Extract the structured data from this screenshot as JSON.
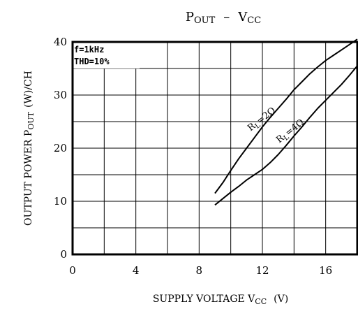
{
  "chart_data": {
    "type": "line",
    "title": "Pₒᵤₜ – Vᴄᴄ",
    "title_parts": {
      "main_left": "P",
      "sub_left": "OUT",
      "dash": "–",
      "main_right": "V",
      "sub_right": "CC"
    },
    "xlabel": "SUPPLY VOLTAGE V",
    "xlabel_sub": "CC",
    "xlabel_unit": "(V)",
    "ylabel": "OUTPUT POWER P",
    "ylabel_sub": "OUT",
    "ylabel_unit": "(W)/CH",
    "xlim": [
      0,
      18
    ],
    "ylim": [
      0,
      40
    ],
    "x_ticks": [
      0,
      4,
      8,
      12,
      16
    ],
    "y_ticks": [
      0,
      10,
      20,
      30,
      40
    ],
    "grid": true,
    "annotations": [
      "f=1kHz",
      "THD=10%"
    ],
    "series": [
      {
        "name": "RL=2Ω",
        "label_main": "R",
        "label_sub": "L",
        "label_value": "=2Ω",
        "x": [
          9.0,
          9.5,
          10.0,
          10.5,
          11.0,
          11.5,
          12.0,
          12.5,
          13.0,
          13.5,
          14.0,
          14.5,
          15.0,
          15.5,
          16.0,
          16.5,
          17.0,
          17.5,
          18.0
        ],
        "y": [
          11.5,
          13.5,
          15.8,
          18.0,
          20.0,
          22.0,
          24.0,
          25.8,
          27.5,
          29.2,
          31.0,
          32.5,
          34.0,
          35.3,
          36.5,
          37.5,
          38.5,
          39.5,
          40.5
        ]
      },
      {
        "name": "RL=4Ω",
        "label_main": "R",
        "label_sub": "L",
        "label_value": "=4Ω",
        "x": [
          9.0,
          9.5,
          10.0,
          10.5,
          11.0,
          11.5,
          12.0,
          12.5,
          13.0,
          13.5,
          14.0,
          14.5,
          15.0,
          15.5,
          16.0,
          16.5,
          17.0,
          17.5,
          18.0
        ],
        "y": [
          9.3,
          10.5,
          11.7,
          12.8,
          14.0,
          15.0,
          16.0,
          17.3,
          18.8,
          20.5,
          22.3,
          24.0,
          25.8,
          27.5,
          29.0,
          30.5,
          32.0,
          33.7,
          35.5
        ]
      }
    ]
  }
}
